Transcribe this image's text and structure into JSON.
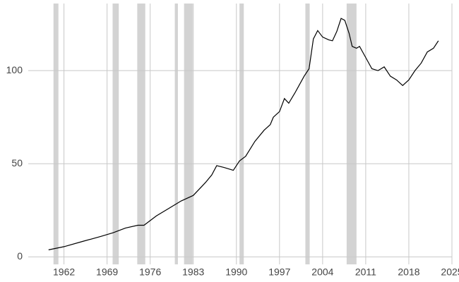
{
  "chart_data": {
    "type": "line",
    "x": [
      1959.5,
      1962,
      1965,
      1968,
      1970,
      1972,
      1974,
      1975,
      1977,
      1979,
      1981,
      1983,
      1985,
      1986,
      1986.8,
      1988,
      1989.5,
      1990.5,
      1991.5,
      1993,
      1994.5,
      1995.5,
      1996,
      1997,
      1997.8,
      1998.5,
      1999.5,
      2001,
      2001.8,
      2002.5,
      2003.2,
      2004,
      2005,
      2005.6,
      2006.3,
      2007,
      2007.6,
      2008.3,
      2008.8,
      2009.5,
      2010,
      2011,
      2012,
      2013,
      2014,
      2015,
      2016,
      2017,
      2018,
      2019,
      2020,
      2021,
      2022,
      2022.8
    ],
    "series": [
      {
        "color": "#000000",
        "values": [
          3.8,
          5.5,
          8.3,
          11,
          13,
          15.5,
          17,
          17,
          22,
          26,
          30,
          33,
          40,
          44,
          49,
          48,
          46.5,
          51.5,
          54,
          62,
          68,
          71,
          75,
          78,
          85,
          82.5,
          88,
          97,
          101,
          117,
          121.5,
          118,
          116.5,
          116,
          121,
          128,
          127,
          120,
          113,
          112,
          113,
          107,
          101,
          100,
          102,
          97,
          95,
          92,
          95,
          100,
          104,
          110,
          112,
          116
        ]
      }
    ],
    "shaded_periods": [
      [
        1960.3,
        1961.1
      ],
      [
        1969.9,
        1970.9
      ],
      [
        1973.9,
        1975.2
      ],
      [
        1980.0,
        1980.5
      ],
      [
        1981.5,
        1982.9
      ],
      [
        1990.5,
        1991.2
      ],
      [
        2001.2,
        2001.9
      ],
      [
        2007.9,
        2009.5
      ]
    ],
    "shade_color": "#d3d3d3",
    "xlim": [
      1956.2,
      2025
    ],
    "xticks": [
      1962,
      1969,
      1976,
      1983,
      1990,
      1997,
      2004,
      2011,
      2018,
      2025
    ],
    "ylim": [
      -4,
      136
    ],
    "yticks": [
      0,
      50,
      100
    ],
    "grid": true
  }
}
